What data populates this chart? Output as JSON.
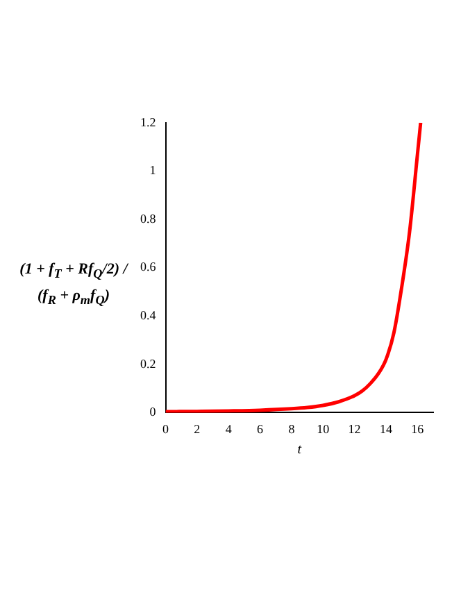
{
  "chart_data": {
    "type": "line",
    "xlabel": "t",
    "ylabel": "(1 + f$_{T}$ + Rf$_{Q}$/2) / (f$_{R}$ + ρ$_{m}$f$_{Q}$)",
    "x": [
      0,
      2,
      4,
      6,
      8,
      9,
      10,
      11,
      12,
      12.5,
      13,
      13.5,
      14,
      14.5,
      15,
      15.5,
      16,
      16.2
    ],
    "series": [
      {
        "color": "#ff0000",
        "values": [
          0.004,
          0.005,
          0.007,
          0.01,
          0.016,
          0.021,
          0.03,
          0.045,
          0.07,
          0.09,
          0.12,
          0.16,
          0.22,
          0.33,
          0.52,
          0.75,
          1.07,
          1.2
        ]
      }
    ],
    "xlim": [
      0,
      17
    ],
    "xticks": [
      0,
      2,
      4,
      6,
      8,
      10,
      12,
      14,
      16
    ],
    "ylim": [
      0,
      1.2
    ],
    "yticks": [
      0,
      0.2,
      0.4,
      0.6,
      0.8,
      1,
      1.2
    ],
    "grid": false,
    "legend": false,
    "marker": "none",
    "line_style": "solid"
  }
}
